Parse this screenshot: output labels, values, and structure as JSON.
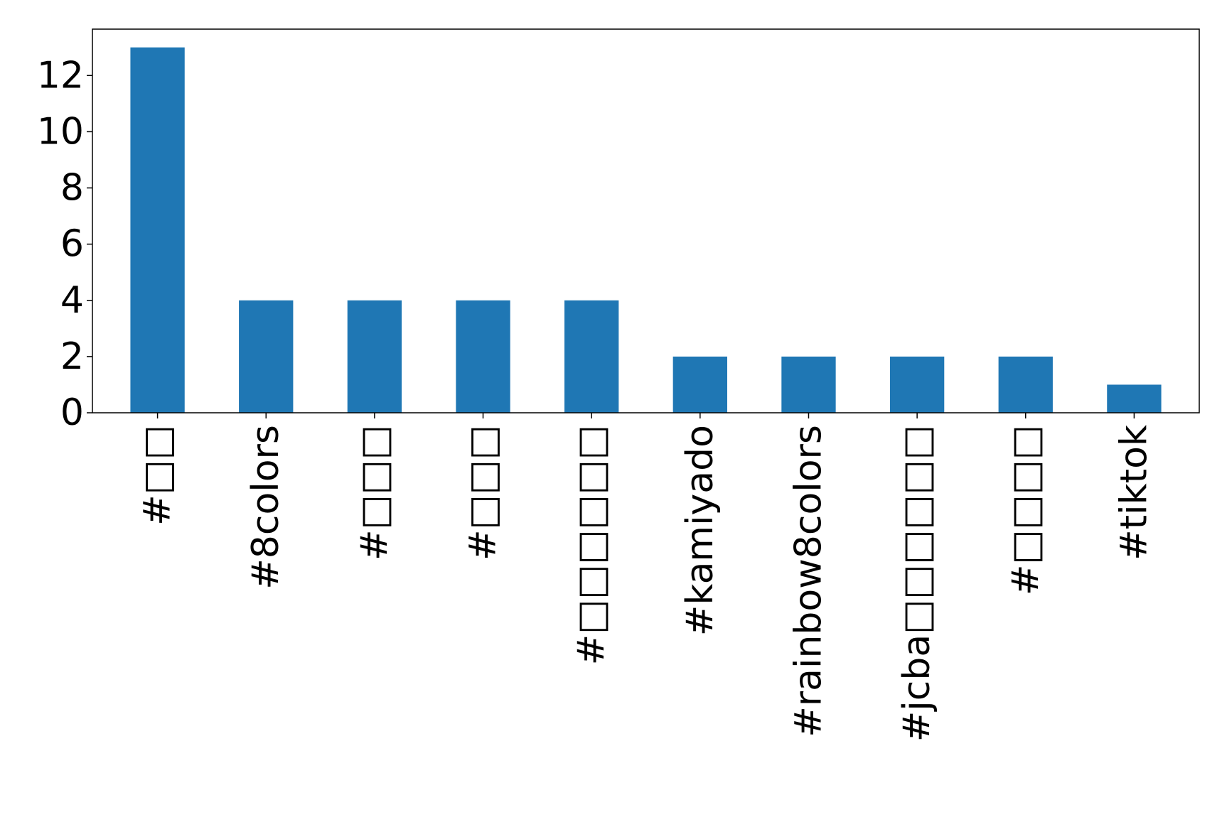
{
  "chart_data": {
    "type": "bar",
    "title": "",
    "xlabel": "",
    "ylabel": "",
    "categories": [
      "#□□",
      "#8colors",
      "#□□□",
      "#□□□",
      "#□□□□□□",
      "#kamiyado",
      "#rainbow8colors",
      "#jcba□□□□□□",
      "#□□□□",
      "#tiktok"
    ],
    "values": [
      13,
      4,
      4,
      4,
      4,
      2,
      2,
      2,
      2,
      1
    ],
    "yticks": [
      0,
      2,
      4,
      6,
      8,
      10,
      12
    ],
    "ylim": [
      0,
      13.65
    ],
    "grid": false,
    "legend": "none",
    "bar_color": "#1f77b4"
  }
}
